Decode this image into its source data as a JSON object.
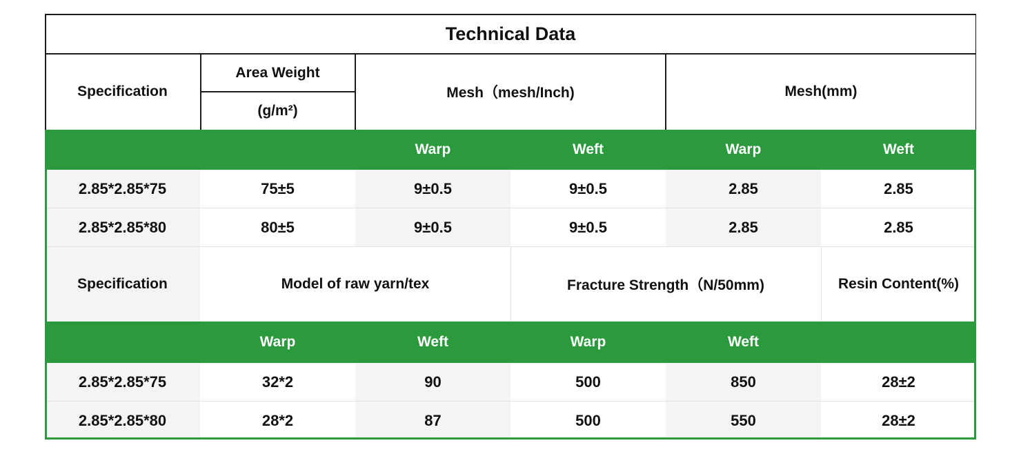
{
  "title": "Technical Data",
  "header1": {
    "specification": "Specification",
    "area_weight": "Area Weight",
    "area_weight_unit": "(g/m²)",
    "mesh_inch": "Mesh（mesh/Inch)",
    "mesh_mm": "Mesh(mm)"
  },
  "subheader1": [
    "",
    "",
    "Warp",
    "Weft",
    "Warp",
    "Weft"
  ],
  "rows1": [
    [
      "2.85*2.85*75",
      "75±5",
      "9±0.5",
      "9±0.5",
      "2.85",
      "2.85"
    ],
    [
      "2.85*2.85*80",
      "80±5",
      "9±0.5",
      "9±0.5",
      "2.85",
      "2.85"
    ]
  ],
  "header2": {
    "specification": "Specification",
    "raw_yarn": "Model of raw yarn/tex",
    "fracture": "Fracture Strength（N/50mm)",
    "resin": "Resin Content(%)"
  },
  "subheader2": [
    "",
    "Warp",
    "Weft",
    "Warp",
    "Weft",
    ""
  ],
  "rows2": [
    [
      "2.85*2.85*75",
      "32*2",
      "90",
      "500",
      "850",
      "28±2"
    ],
    [
      "2.85*2.85*80",
      "28*2",
      "87",
      "500",
      "550",
      "28±2"
    ]
  ]
}
